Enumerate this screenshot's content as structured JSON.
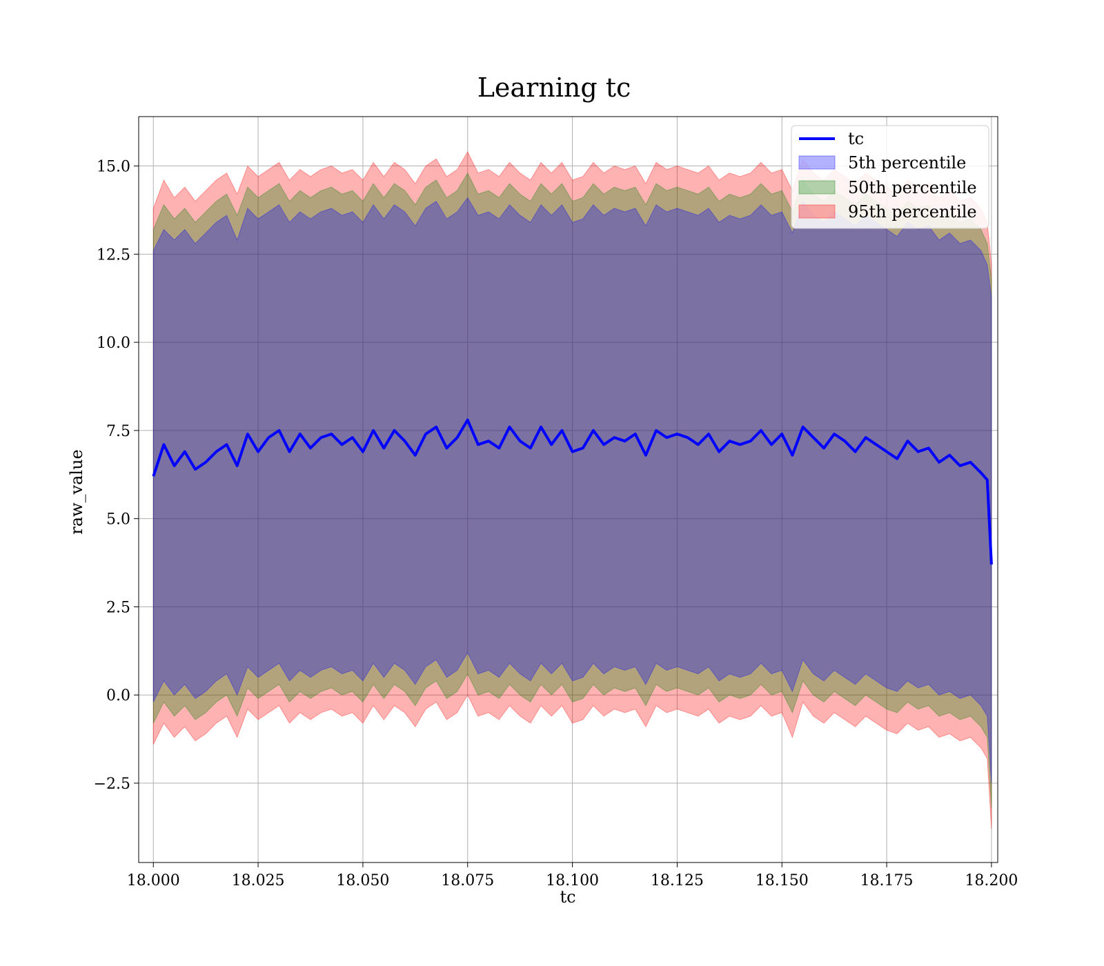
{
  "chart_data": {
    "type": "area",
    "title": "Learning tc",
    "xlabel": "tc",
    "ylabel": "raw_value",
    "xlim": [
      17.9965,
      18.2015
    ],
    "ylim": [
      -4.75,
      16.4
    ],
    "grid": true,
    "legend_position": "top-right",
    "x_ticks": [
      18.0,
      18.025,
      18.05,
      18.075,
      18.1,
      18.125,
      18.15,
      18.175,
      18.2
    ],
    "x_tick_labels": [
      "18.000",
      "18.025",
      "18.050",
      "18.075",
      "18.100",
      "18.125",
      "18.150",
      "18.175",
      "18.200"
    ],
    "y_ticks": [
      -2.5,
      0.0,
      2.5,
      5.0,
      7.5,
      10.0,
      12.5,
      15.0
    ],
    "y_tick_labels": [
      "−2.5",
      "0.0",
      "2.5",
      "5.0",
      "7.5",
      "10.0",
      "12.5",
      "15.0"
    ],
    "x": [
      18.0,
      18.0025,
      18.005,
      18.0075,
      18.01,
      18.0125,
      18.015,
      18.0175,
      18.02,
      18.0225,
      18.025,
      18.0275,
      18.03,
      18.0325,
      18.035,
      18.0375,
      18.04,
      18.0425,
      18.045,
      18.0475,
      18.05,
      18.0525,
      18.055,
      18.0575,
      18.06,
      18.0625,
      18.065,
      18.0675,
      18.07,
      18.0725,
      18.075,
      18.0775,
      18.08,
      18.0825,
      18.085,
      18.0875,
      18.09,
      18.0925,
      18.095,
      18.0975,
      18.1,
      18.1025,
      18.105,
      18.1075,
      18.11,
      18.1125,
      18.115,
      18.1175,
      18.12,
      18.1225,
      18.125,
      18.1275,
      18.13,
      18.1325,
      18.135,
      18.1375,
      18.14,
      18.1425,
      18.145,
      18.1475,
      18.15,
      18.1525,
      18.155,
      18.1575,
      18.16,
      18.1625,
      18.165,
      18.1675,
      18.17,
      18.1725,
      18.175,
      18.1775,
      18.18,
      18.1825,
      18.185,
      18.1875,
      18.19,
      18.1925,
      18.195,
      18.1975,
      18.199,
      18.2
    ],
    "series": [
      {
        "name": "tc",
        "kind": "line",
        "color": "#0000ff",
        "values": [
          6.2,
          7.1,
          6.5,
          6.9,
          6.4,
          6.6,
          6.9,
          7.1,
          6.5,
          7.4,
          6.9,
          7.3,
          7.5,
          6.9,
          7.4,
          7.0,
          7.3,
          7.4,
          7.1,
          7.3,
          6.9,
          7.5,
          7.0,
          7.5,
          7.2,
          6.8,
          7.4,
          7.6,
          7.0,
          7.3,
          7.8,
          7.1,
          7.2,
          7.0,
          7.6,
          7.2,
          7.0,
          7.6,
          7.1,
          7.5,
          6.9,
          7.0,
          7.5,
          7.1,
          7.3,
          7.2,
          7.4,
          6.8,
          7.5,
          7.3,
          7.4,
          7.3,
          7.1,
          7.4,
          6.9,
          7.2,
          7.1,
          7.2,
          7.5,
          7.1,
          7.4,
          6.8,
          7.6,
          7.3,
          7.0,
          7.4,
          7.2,
          6.9,
          7.3,
          7.1,
          6.9,
          6.7,
          7.2,
          6.9,
          7.0,
          6.6,
          6.8,
          6.5,
          6.6,
          6.3,
          6.1,
          3.7
        ]
      },
      {
        "name": "5th percentile",
        "kind": "band",
        "color": "#0000ff",
        "upper": [
          12.6,
          13.2,
          12.9,
          13.2,
          12.8,
          13.1,
          13.4,
          13.6,
          12.9,
          13.8,
          13.5,
          13.7,
          13.9,
          13.4,
          13.7,
          13.5,
          13.7,
          13.8,
          13.6,
          13.7,
          13.4,
          13.9,
          13.5,
          13.9,
          13.7,
          13.3,
          13.8,
          14.0,
          13.5,
          13.7,
          14.1,
          13.6,
          13.7,
          13.5,
          13.9,
          13.6,
          13.4,
          13.9,
          13.6,
          13.9,
          13.4,
          13.5,
          13.9,
          13.6,
          13.8,
          13.7,
          13.8,
          13.3,
          13.9,
          13.7,
          13.8,
          13.7,
          13.6,
          13.8,
          13.4,
          13.6,
          13.5,
          13.6,
          13.9,
          13.6,
          13.7,
          13.1,
          14.0,
          13.6,
          13.4,
          13.7,
          13.5,
          13.3,
          13.6,
          13.4,
          13.2,
          13.0,
          13.4,
          13.2,
          13.3,
          12.9,
          13.1,
          12.8,
          12.9,
          12.6,
          12.2,
          11.3
        ],
        "lower": [
          -0.2,
          0.4,
          0.0,
          0.3,
          -0.1,
          0.1,
          0.4,
          0.6,
          0.0,
          0.8,
          0.5,
          0.7,
          0.9,
          0.4,
          0.7,
          0.5,
          0.7,
          0.8,
          0.6,
          0.7,
          0.4,
          0.9,
          0.5,
          0.9,
          0.7,
          0.3,
          0.8,
          1.0,
          0.5,
          0.7,
          1.2,
          0.6,
          0.7,
          0.5,
          0.9,
          0.6,
          0.4,
          0.9,
          0.6,
          0.9,
          0.4,
          0.5,
          0.9,
          0.6,
          0.8,
          0.7,
          0.8,
          0.3,
          0.9,
          0.7,
          0.8,
          0.7,
          0.6,
          0.8,
          0.4,
          0.6,
          0.5,
          0.6,
          0.9,
          0.6,
          0.7,
          0.1,
          1.0,
          0.6,
          0.4,
          0.7,
          0.5,
          0.3,
          0.6,
          0.4,
          0.2,
          0.1,
          0.4,
          0.2,
          0.3,
          0.0,
          0.1,
          -0.1,
          0.0,
          -0.3,
          -0.6,
          -2.5
        ]
      },
      {
        "name": "50th percentile",
        "kind": "band",
        "color": "#008000",
        "upper": [
          13.2,
          13.9,
          13.5,
          13.8,
          13.4,
          13.7,
          14.0,
          14.2,
          13.6,
          14.4,
          14.1,
          14.3,
          14.5,
          14.0,
          14.3,
          14.1,
          14.3,
          14.4,
          14.2,
          14.3,
          14.0,
          14.5,
          14.1,
          14.5,
          14.3,
          13.9,
          14.4,
          14.6,
          14.1,
          14.3,
          14.8,
          14.2,
          14.3,
          14.1,
          14.5,
          14.2,
          14.0,
          14.5,
          14.2,
          14.5,
          14.0,
          14.1,
          14.5,
          14.2,
          14.4,
          14.3,
          14.4,
          13.9,
          14.5,
          14.3,
          14.4,
          14.3,
          14.2,
          14.4,
          14.0,
          14.2,
          14.1,
          14.2,
          14.5,
          14.2,
          14.3,
          13.7,
          14.6,
          14.2,
          14.0,
          14.3,
          14.1,
          13.9,
          14.2,
          14.0,
          13.8,
          13.6,
          14.0,
          13.8,
          13.9,
          13.5,
          13.7,
          13.4,
          13.5,
          13.2,
          12.8,
          11.8
        ],
        "lower": [
          -0.8,
          -0.2,
          -0.6,
          -0.3,
          -0.7,
          -0.5,
          -0.2,
          0.0,
          -0.6,
          0.2,
          -0.1,
          0.1,
          0.3,
          -0.2,
          0.1,
          -0.1,
          0.1,
          0.2,
          0.0,
          0.1,
          -0.2,
          0.3,
          -0.1,
          0.3,
          0.1,
          -0.3,
          0.2,
          0.4,
          -0.1,
          0.1,
          0.6,
          0.0,
          0.1,
          -0.1,
          0.3,
          0.0,
          -0.2,
          0.3,
          0.0,
          0.3,
          -0.2,
          -0.1,
          0.3,
          0.0,
          0.2,
          0.1,
          0.2,
          -0.3,
          0.3,
          0.1,
          0.2,
          0.1,
          0.0,
          0.2,
          -0.2,
          0.0,
          -0.1,
          0.0,
          0.3,
          0.0,
          0.1,
          -0.5,
          0.4,
          0.0,
          -0.2,
          0.1,
          -0.1,
          -0.3,
          0.0,
          -0.2,
          -0.4,
          -0.5,
          -0.2,
          -0.4,
          -0.3,
          -0.6,
          -0.5,
          -0.7,
          -0.6,
          -0.9,
          -1.2,
          -3.2
        ]
      },
      {
        "name": "95th percentile",
        "kind": "band",
        "color": "#ff0000",
        "upper": [
          13.8,
          14.6,
          14.1,
          14.4,
          14.0,
          14.3,
          14.6,
          14.8,
          14.2,
          15.0,
          14.7,
          14.9,
          15.1,
          14.6,
          14.9,
          14.7,
          14.9,
          15.0,
          14.8,
          14.9,
          14.6,
          15.1,
          14.7,
          15.1,
          14.9,
          14.5,
          15.0,
          15.2,
          14.7,
          14.9,
          15.4,
          14.8,
          14.9,
          14.7,
          15.1,
          14.8,
          14.6,
          15.1,
          14.8,
          15.1,
          14.6,
          14.7,
          15.1,
          14.8,
          15.0,
          14.9,
          15.0,
          14.5,
          15.1,
          14.9,
          15.0,
          14.9,
          14.8,
          15.0,
          14.6,
          14.8,
          14.7,
          14.8,
          15.1,
          14.8,
          14.9,
          14.3,
          15.2,
          14.8,
          14.6,
          14.9,
          14.7,
          14.5,
          14.8,
          14.6,
          14.4,
          14.2,
          14.6,
          14.4,
          14.5,
          14.1,
          14.3,
          14.0,
          14.1,
          13.8,
          13.4,
          12.2
        ],
        "lower": [
          -1.4,
          -0.8,
          -1.2,
          -0.9,
          -1.3,
          -1.1,
          -0.8,
          -0.6,
          -1.2,
          -0.4,
          -0.7,
          -0.5,
          -0.3,
          -0.8,
          -0.5,
          -0.7,
          -0.5,
          -0.4,
          -0.6,
          -0.5,
          -0.8,
          -0.3,
          -0.7,
          -0.3,
          -0.5,
          -0.9,
          -0.4,
          -0.2,
          -0.7,
          -0.5,
          0.0,
          -0.6,
          -0.5,
          -0.7,
          -0.3,
          -0.6,
          -0.8,
          -0.3,
          -0.6,
          -0.3,
          -0.8,
          -0.7,
          -0.3,
          -0.6,
          -0.4,
          -0.5,
          -0.4,
          -0.9,
          -0.3,
          -0.5,
          -0.4,
          -0.5,
          -0.6,
          -0.4,
          -0.8,
          -0.6,
          -0.7,
          -0.6,
          -0.3,
          -0.6,
          -0.5,
          -1.2,
          -0.2,
          -0.6,
          -0.8,
          -0.5,
          -0.7,
          -0.9,
          -0.6,
          -0.8,
          -1.0,
          -1.1,
          -0.8,
          -1.0,
          -0.9,
          -1.2,
          -1.1,
          -1.3,
          -1.2,
          -1.5,
          -1.8,
          -3.8
        ]
      }
    ]
  }
}
